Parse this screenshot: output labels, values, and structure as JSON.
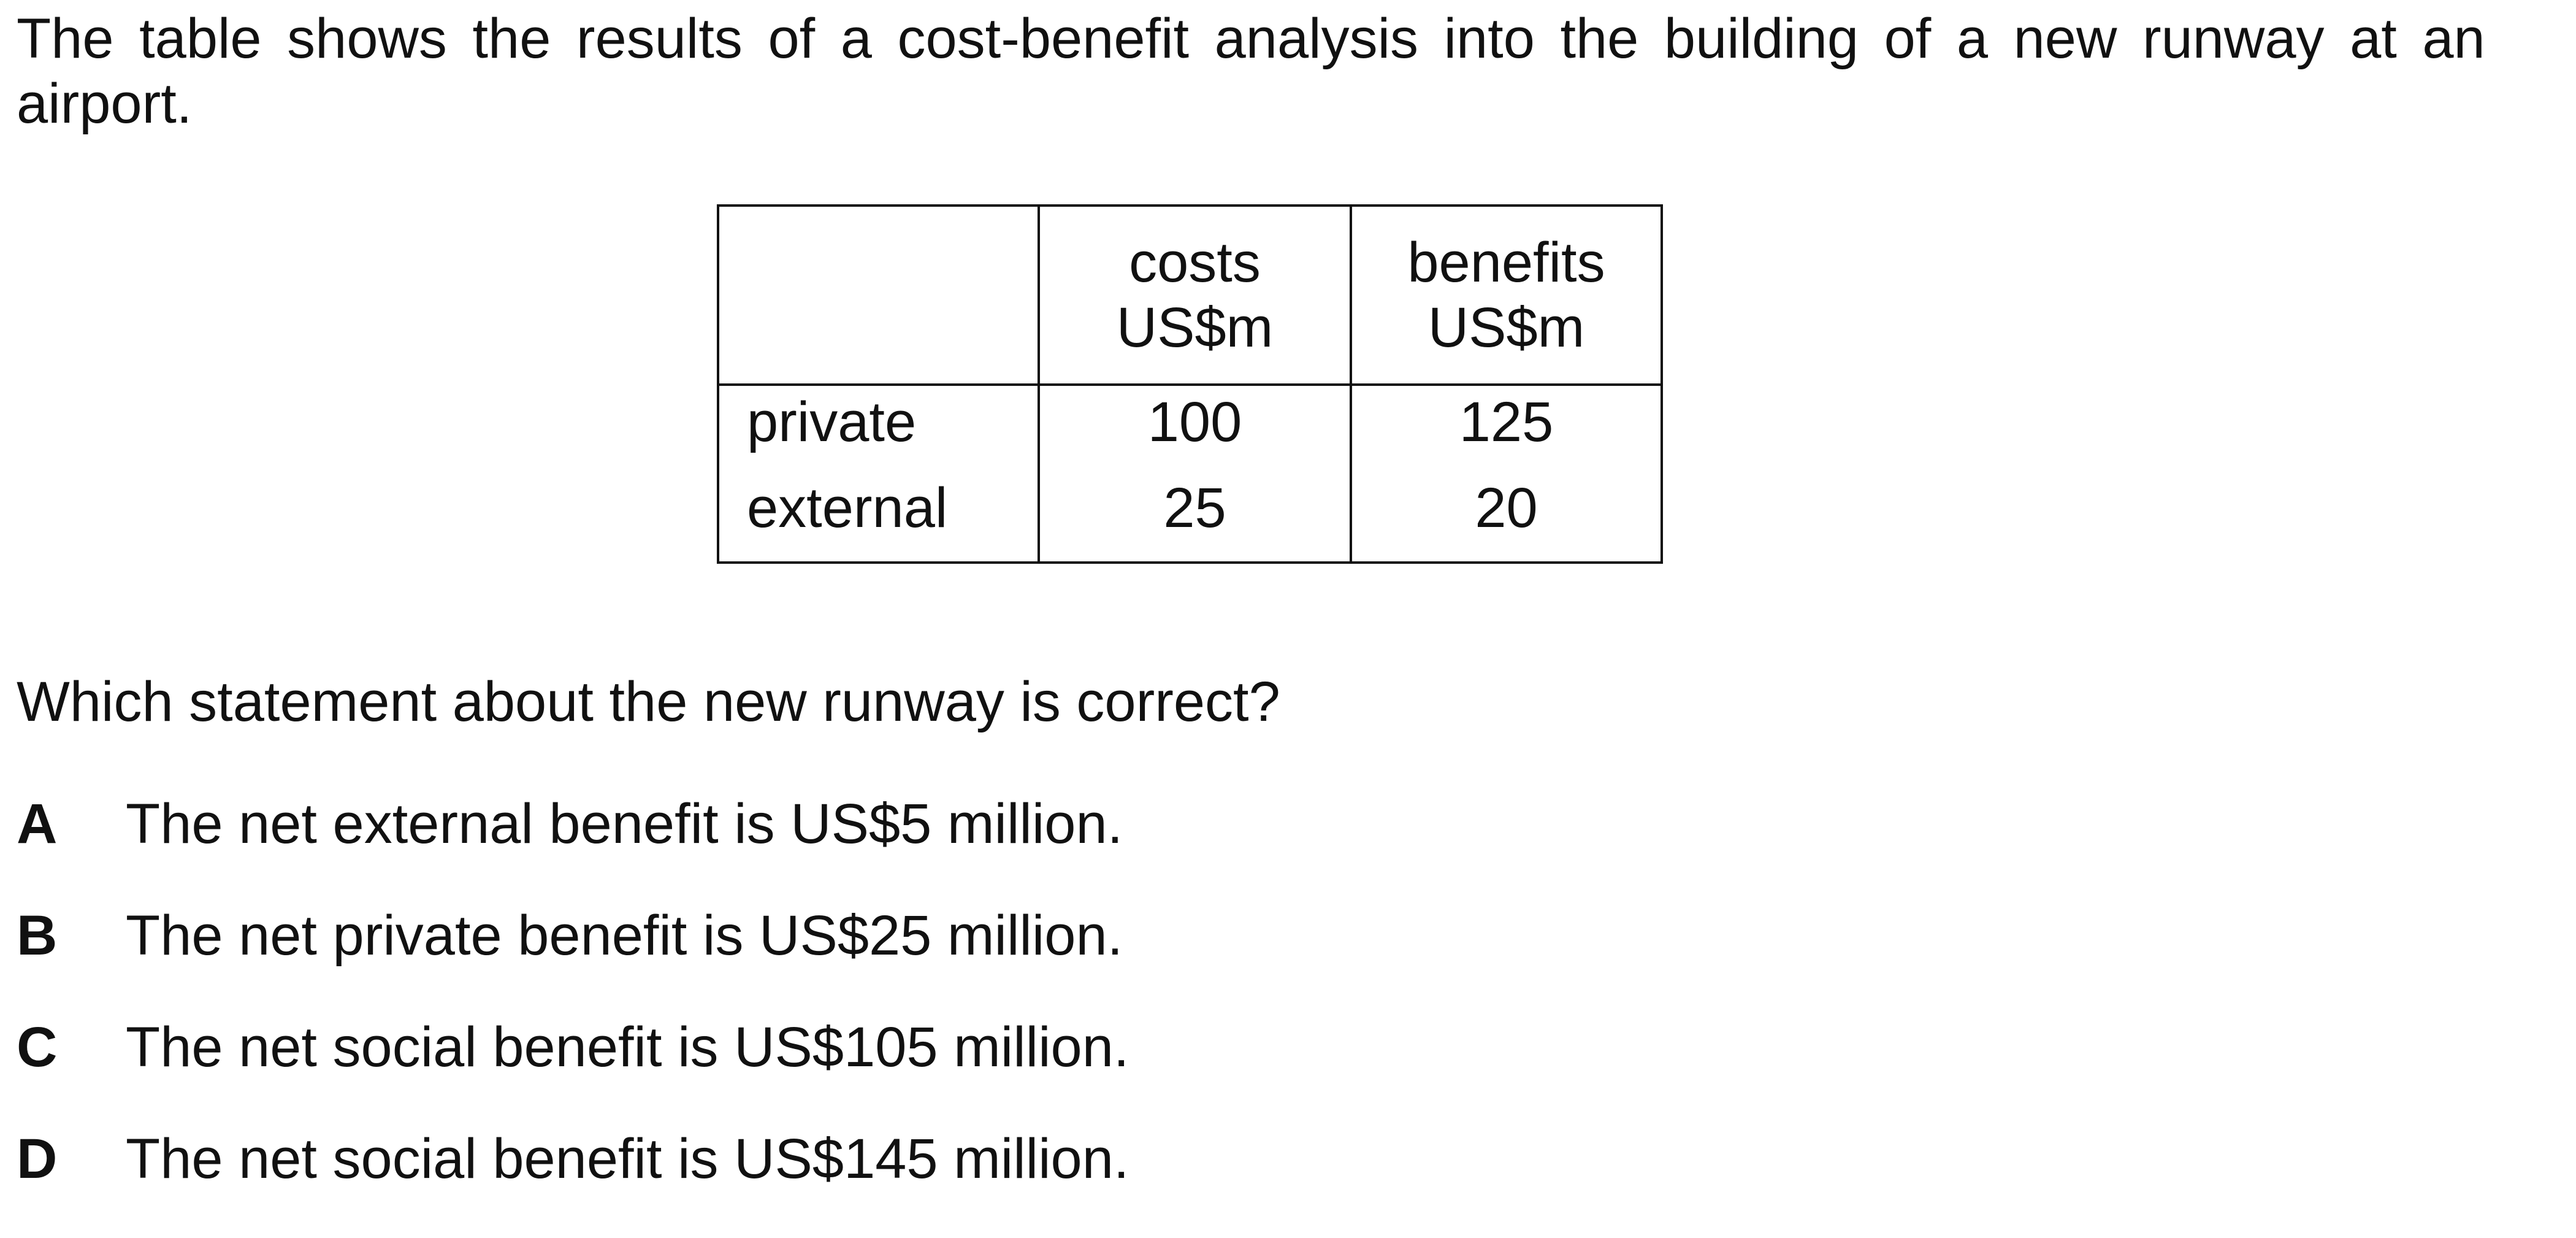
{
  "intro": {
    "line1": "The table shows the results of a cost-benefit analysis into the building of a new runway at an",
    "line2": "airport."
  },
  "table": {
    "header": {
      "blank": "",
      "costs_line1": "costs",
      "costs_line2": "US$m",
      "benefits_line1": "benefits",
      "benefits_line2": "US$m"
    },
    "rows": [
      {
        "label": "private",
        "costs": "100",
        "benefits": "125"
      },
      {
        "label": "external",
        "costs": "25",
        "benefits": "20"
      }
    ]
  },
  "question": "Which statement about the new runway is correct?",
  "options": [
    {
      "letter": "A",
      "text": "The net external benefit is US$5 million."
    },
    {
      "letter": "B",
      "text": "The net private benefit is US$25 million."
    },
    {
      "letter": "C",
      "text": "The net social benefit is US$105 million."
    },
    {
      "letter": "D",
      "text": "The net social benefit is US$145 million."
    }
  ]
}
